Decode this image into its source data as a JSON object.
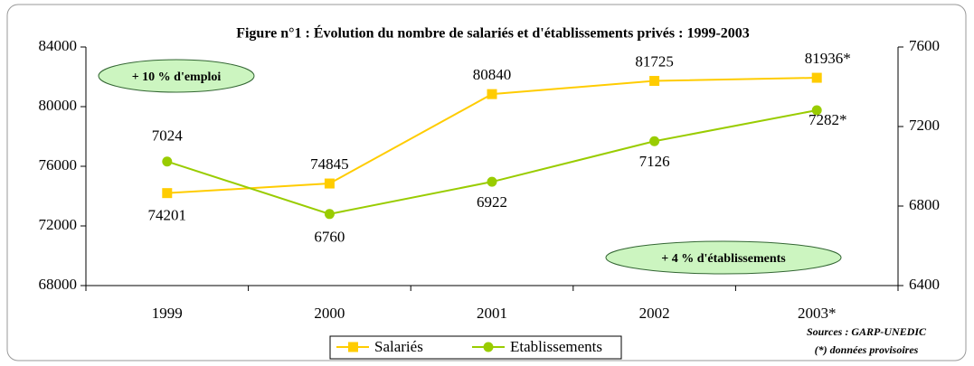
{
  "chart_data": {
    "type": "line",
    "title": "Figure n°1 : Évolution du nombre de salariés et d'établissements privés : 1999-2003",
    "categories": [
      "1999",
      "2000",
      "2001",
      "2002",
      "2003*"
    ],
    "series": [
      {
        "name": "Salariés",
        "color": "#ffcc00",
        "values": [
          74201,
          74845,
          80840,
          81725,
          81936
        ],
        "value_labels": [
          "74201",
          "74845",
          "80840",
          "81725",
          "81936*"
        ]
      },
      {
        "name": "Etablissements",
        "color": "#99cc00",
        "axis": "y2",
        "values": [
          7024,
          6760,
          6922,
          7126,
          7282
        ],
        "value_labels": [
          "7024",
          "6760",
          "6922",
          "7126",
          "7282*"
        ]
      }
    ],
    "ylim": [
      68000,
      84000
    ],
    "yticks": [
      68000,
      72000,
      76000,
      80000,
      84000
    ],
    "y2lim": [
      6400,
      7600
    ],
    "y2ticks": [
      6400,
      6800,
      7200,
      7600
    ],
    "annotations": [
      "+ 10 % d'emploi",
      "+ 4 % d'établissements"
    ],
    "sources": [
      "Sources : GARP-UNEDIC",
      "(*) données provisoires"
    ],
    "legend": "bottom"
  }
}
